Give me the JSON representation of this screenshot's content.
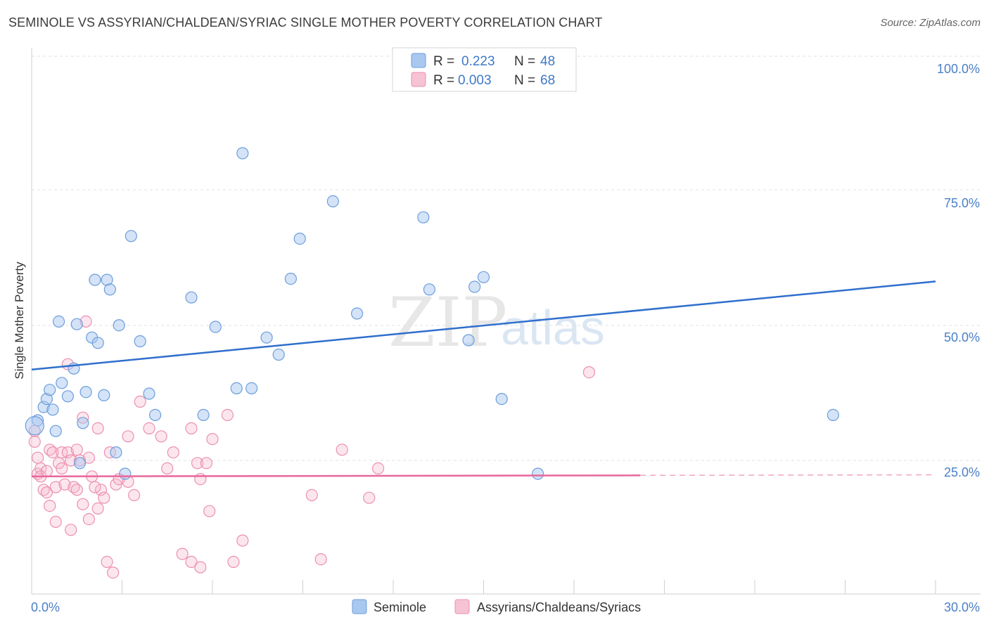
{
  "title": "SEMINOLE VS ASSYRIAN/CHALDEAN/SYRIAC SINGLE MOTHER POVERTY CORRELATION CHART",
  "source": "Source: ZipAtlas.com",
  "watermark": {
    "zip": "ZIP",
    "atlas": "atlas"
  },
  "legend": {
    "r_label": "R =",
    "n_label": "N =",
    "rows": [
      {
        "r": "0.223",
        "n": "48"
      },
      {
        "r": "0.003",
        "n": "68"
      }
    ]
  },
  "chart_data": {
    "type": "scatter",
    "title": "SEMINOLE VS ASSYRIAN/CHALDEAN/SYRIAC SINGLE MOTHER POVERTY CORRELATION CHART",
    "xlabel": "",
    "ylabel": "Single Mother Poverty",
    "xlim": [
      0,
      30
    ],
    "ylim": [
      0,
      102
    ],
    "x_tick_labels": [
      "0.0%",
      "30.0%"
    ],
    "y_ticks": [
      25,
      50,
      75,
      100
    ],
    "y_tick_labels": [
      "25.0%",
      "50.0%",
      "75.0%",
      "100.0%"
    ],
    "grid": true,
    "legend_position": "top-center",
    "colors": {
      "seminole": "#a9c8ef",
      "seminole_line": "#2f6fcc",
      "assyrian": "#f6b7cb",
      "assyrian_line": "#e8679a"
    },
    "series": [
      {
        "name": "Seminole",
        "r": 0.223,
        "n": 48,
        "trend": {
          "x": [
            0,
            30
          ],
          "y": [
            42.0,
            58.5
          ]
        },
        "points": [
          [
            0.2,
            32.5
          ],
          [
            0.4,
            35.0
          ],
          [
            0.5,
            36.5
          ],
          [
            0.6,
            38.2
          ],
          [
            0.7,
            34.5
          ],
          [
            0.8,
            30.5
          ],
          [
            0.9,
            51.0
          ],
          [
            1.0,
            39.5
          ],
          [
            1.2,
            37.0
          ],
          [
            1.4,
            42.2
          ],
          [
            1.5,
            50.5
          ],
          [
            1.6,
            24.5
          ],
          [
            1.7,
            32.0
          ],
          [
            1.8,
            37.8
          ],
          [
            2.0,
            48.0
          ],
          [
            2.1,
            58.8
          ],
          [
            2.2,
            47.0
          ],
          [
            2.4,
            37.2
          ],
          [
            2.5,
            58.8
          ],
          [
            2.6,
            57.0
          ],
          [
            2.8,
            26.5
          ],
          [
            2.9,
            50.3
          ],
          [
            3.1,
            22.5
          ],
          [
            3.3,
            67.0
          ],
          [
            3.6,
            47.3
          ],
          [
            3.9,
            37.5
          ],
          [
            4.1,
            33.5
          ],
          [
            5.3,
            55.5
          ],
          [
            5.7,
            33.5
          ],
          [
            6.1,
            50.0
          ],
          [
            6.8,
            38.5
          ],
          [
            7.0,
            82.5
          ],
          [
            7.3,
            38.5
          ],
          [
            7.8,
            48.0
          ],
          [
            8.2,
            44.8
          ],
          [
            8.6,
            59.0
          ],
          [
            8.9,
            66.5
          ],
          [
            10.0,
            73.5
          ],
          [
            10.8,
            52.5
          ],
          [
            13.0,
            70.5
          ],
          [
            13.2,
            57.0
          ],
          [
            14.5,
            47.5
          ],
          [
            14.7,
            57.5
          ],
          [
            15.0,
            59.3
          ],
          [
            15.6,
            36.5
          ],
          [
            16.8,
            22.5
          ],
          [
            26.6,
            33.5
          ],
          [
            0.1,
            31.5
          ]
        ]
      },
      {
        "name": "Assyrians/Chaldeans/Syriacs",
        "r": 0.003,
        "n": 68,
        "trend": {
          "x": [
            0,
            20.2
          ],
          "y": [
            22.0,
            22.2
          ]
        },
        "trend_dashed": {
          "x": [
            20.2,
            30
          ],
          "y": [
            22.2,
            22.3
          ]
        },
        "points": [
          [
            0.1,
            28.5
          ],
          [
            0.1,
            30.5
          ],
          [
            0.2,
            25.5
          ],
          [
            0.2,
            22.5
          ],
          [
            0.3,
            23.5
          ],
          [
            0.3,
            22.0
          ],
          [
            0.4,
            19.5
          ],
          [
            0.5,
            19.0
          ],
          [
            0.6,
            16.5
          ],
          [
            0.6,
            27.0
          ],
          [
            0.7,
            26.5
          ],
          [
            0.8,
            13.5
          ],
          [
            0.8,
            20.0
          ],
          [
            0.9,
            24.5
          ],
          [
            1.0,
            26.5
          ],
          [
            1.0,
            23.5
          ],
          [
            1.1,
            20.5
          ],
          [
            1.2,
            26.5
          ],
          [
            1.2,
            43.0
          ],
          [
            1.3,
            25.0
          ],
          [
            1.3,
            12.0
          ],
          [
            1.4,
            20.0
          ],
          [
            1.5,
            27.0
          ],
          [
            1.5,
            19.5
          ],
          [
            1.7,
            16.8
          ],
          [
            1.7,
            33.0
          ],
          [
            1.8,
            51.0
          ],
          [
            1.9,
            14.0
          ],
          [
            1.9,
            25.5
          ],
          [
            2.0,
            22.0
          ],
          [
            2.2,
            31.0
          ],
          [
            2.2,
            16.0
          ],
          [
            2.3,
            19.5
          ],
          [
            2.4,
            18.0
          ],
          [
            2.5,
            6.0
          ],
          [
            2.6,
            26.5
          ],
          [
            2.7,
            4.0
          ],
          [
            2.8,
            20.5
          ],
          [
            2.9,
            21.5
          ],
          [
            3.2,
            29.5
          ],
          [
            3.2,
            21.0
          ],
          [
            3.4,
            18.5
          ],
          [
            3.6,
            36.0
          ],
          [
            3.9,
            31.0
          ],
          [
            4.3,
            29.5
          ],
          [
            4.5,
            23.5
          ],
          [
            4.7,
            26.5
          ],
          [
            5.0,
            7.5
          ],
          [
            5.3,
            6.0
          ],
          [
            5.3,
            31.0
          ],
          [
            5.5,
            24.5
          ],
          [
            5.6,
            21.5
          ],
          [
            5.6,
            5.0
          ],
          [
            5.8,
            24.5
          ],
          [
            5.9,
            15.5
          ],
          [
            6.0,
            29.0
          ],
          [
            6.5,
            33.5
          ],
          [
            6.7,
            6.0
          ],
          [
            7.0,
            10.0
          ],
          [
            9.3,
            18.5
          ],
          [
            9.6,
            6.5
          ],
          [
            10.3,
            27.0
          ],
          [
            11.2,
            18.0
          ],
          [
            11.5,
            23.5
          ],
          [
            18.5,
            41.5
          ],
          [
            0.5,
            23.0
          ],
          [
            1.6,
            25.0
          ],
          [
            2.1,
            20.0
          ]
        ]
      }
    ]
  },
  "bottom_legend": [
    {
      "label": "Seminole"
    },
    {
      "label": "Assyrians/Chaldeans/Syriacs"
    }
  ]
}
